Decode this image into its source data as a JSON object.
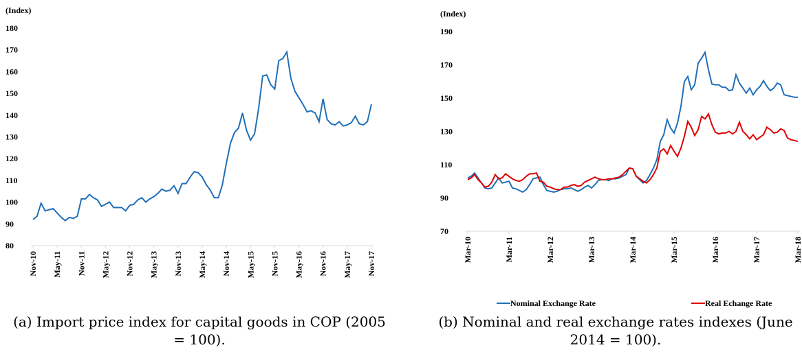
{
  "chart_data": [
    {
      "type": "line",
      "y_label": "(Index)",
      "caption": "(a) Import price index for capital goods in COP (2005 = 100).",
      "categories": [
        "Nov-10",
        null,
        null,
        null,
        null,
        null,
        "May-11",
        null,
        null,
        null,
        null,
        null,
        "Nov-11",
        null,
        null,
        null,
        null,
        null,
        "May-12",
        null,
        null,
        null,
        null,
        null,
        "Nov-12",
        null,
        null,
        null,
        null,
        null,
        "May-13",
        null,
        null,
        null,
        null,
        null,
        "Nov-13",
        null,
        null,
        null,
        null,
        null,
        "May-14",
        null,
        null,
        null,
        null,
        null,
        "Nov-14",
        null,
        null,
        null,
        null,
        null,
        "May-15",
        null,
        null,
        null,
        null,
        null,
        "Nov-15",
        null,
        null,
        null,
        null,
        null,
        "May-16",
        null,
        null,
        null,
        null,
        null,
        "Nov-16",
        null,
        null,
        null,
        null,
        null,
        "May-17",
        null,
        null,
        null,
        null,
        null,
        "Nov-17"
      ],
      "series": [
        {
          "color": "#1f6fb8",
          "values": [
            92,
            93.5,
            99.5,
            96,
            96.5,
            97,
            95,
            93,
            91.5,
            93,
            92.5,
            93.5,
            101.5,
            101.5,
            103.5,
            102,
            101,
            98,
            99,
            100,
            97.5,
            97.5,
            97.5,
            96,
            98.5,
            99,
            101,
            102,
            100,
            101.5,
            102.5,
            104,
            106,
            105,
            105.5,
            107.5,
            104,
            108.5,
            108.5,
            111.5,
            114,
            113.5,
            111.5,
            108,
            105.5,
            102,
            102,
            108,
            118,
            127,
            132,
            134,
            141,
            133,
            128.5,
            131.5,
            143,
            158,
            158.5,
            154,
            152,
            165,
            166,
            169,
            157,
            151,
            148,
            145,
            141.5,
            142,
            141,
            137,
            147.5,
            138,
            136,
            135.5,
            137,
            135,
            135.5,
            136.5,
            139.5,
            136,
            135.5,
            137,
            145
          ]
        }
      ],
      "ylim": [
        80,
        180
      ],
      "yticks": [
        80,
        90,
        100,
        110,
        120,
        130,
        140,
        150,
        160,
        170,
        180
      ]
    },
    {
      "type": "line",
      "y_label": "(Index)",
      "caption": "(b) Nominal and real exchange rates indexes (June 2014 = 100).",
      "categories": [
        "Mar-10",
        null,
        null,
        null,
        null,
        null,
        null,
        null,
        null,
        null,
        null,
        null,
        "Mar-11",
        null,
        null,
        null,
        null,
        null,
        null,
        null,
        null,
        null,
        null,
        null,
        "Mar-12",
        null,
        null,
        null,
        null,
        null,
        null,
        null,
        null,
        null,
        null,
        null,
        "Mar-13",
        null,
        null,
        null,
        null,
        null,
        null,
        null,
        null,
        null,
        null,
        null,
        "Mar-14",
        null,
        null,
        null,
        null,
        null,
        null,
        null,
        null,
        null,
        null,
        null,
        "Mar-15",
        null,
        null,
        null,
        null,
        null,
        null,
        null,
        null,
        null,
        null,
        null,
        "Mar-16",
        null,
        null,
        null,
        null,
        null,
        null,
        null,
        null,
        null,
        null,
        null,
        "Mar-17",
        null,
        null,
        null,
        null,
        null,
        null,
        null,
        null,
        null,
        null,
        null,
        "Mar-18"
      ],
      "series": [
        {
          "name": "Nominal Exchange Rate",
          "color": "#1f6fb8",
          "values": [
            102,
            103,
            105,
            102,
            99,
            96,
            95.5,
            96,
            99,
            102,
            99,
            99.5,
            100,
            96,
            95.5,
            94.5,
            93.5,
            95,
            98,
            101.5,
            102,
            102.5,
            98,
            94.5,
            94,
            93.5,
            94,
            95,
            95.5,
            95.5,
            96,
            95,
            94,
            95,
            96.5,
            97.5,
            96,
            98,
            100.5,
            101,
            101,
            100.5,
            101.5,
            101.5,
            102,
            103,
            104,
            108,
            107.5,
            103,
            101,
            99,
            100.5,
            104,
            108,
            113,
            124,
            128,
            137,
            132,
            129,
            135,
            145,
            160,
            163,
            155,
            158,
            171,
            174,
            177.5,
            167,
            158.5,
            158,
            158,
            156.5,
            156.5,
            154.5,
            155,
            164,
            159,
            156,
            153,
            156,
            152,
            155,
            157,
            160.5,
            157,
            154.5,
            156,
            159,
            158,
            152,
            151.5,
            151,
            150.5,
            150.5
          ]
        },
        {
          "name": "Real Echange Rate",
          "color": "#e00000",
          "values": [
            101,
            102,
            104,
            101,
            99,
            96.5,
            97,
            99.5,
            104,
            101.5,
            102,
            104.5,
            103,
            101.5,
            100.5,
            100,
            101,
            103,
            104.5,
            104.5,
            105,
            100,
            99.5,
            97,
            96.5,
            95.5,
            95,
            95,
            96.5,
            96.5,
            97.5,
            98,
            97,
            97.5,
            99.5,
            100.5,
            101.5,
            102.5,
            101.5,
            101,
            101,
            101.5,
            101.5,
            102,
            102.5,
            104,
            106,
            108,
            107.5,
            103,
            101.5,
            100,
            99,
            101,
            104,
            108,
            118,
            119.5,
            116.5,
            121.5,
            118,
            115,
            120,
            127,
            136,
            132.5,
            127.5,
            131,
            139,
            137.5,
            140.5,
            134,
            129.5,
            128.5,
            129,
            129,
            130,
            128.5,
            130,
            135.5,
            130,
            128,
            125.5,
            128,
            125,
            126.5,
            128,
            132.5,
            131,
            129,
            129.5,
            131.5,
            130.5,
            126,
            125,
            124.5,
            124
          ]
        }
      ],
      "ylim": [
        70,
        190
      ],
      "yticks": [
        70,
        90,
        110,
        130,
        150,
        170,
        190
      ]
    }
  ]
}
